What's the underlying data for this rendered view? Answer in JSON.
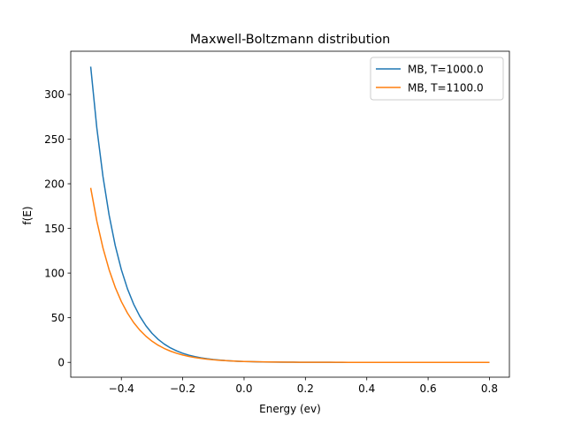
{
  "chart_data": {
    "type": "line",
    "title": "Maxwell-Boltzmann distribution",
    "xlabel": "Energy (ev)",
    "ylabel": "f(E)",
    "xlim": [
      -0.565,
      0.865
    ],
    "ylim": [
      -16.6,
      348.4
    ],
    "xticks": [
      -0.4,
      -0.2,
      0.0,
      0.2,
      0.4,
      0.6,
      0.8
    ],
    "xtick_labels": [
      "−0.4",
      "−0.2",
      "0.0",
      "0.2",
      "0.4",
      "0.6",
      "0.8"
    ],
    "yticks": [
      0,
      50,
      100,
      150,
      200,
      250,
      300
    ],
    "ytick_labels": [
      "0",
      "50",
      "100",
      "150",
      "200",
      "250",
      "300"
    ],
    "grid": false,
    "legend_position": "top-right",
    "series": [
      {
        "name": "MB, T=1000.0",
        "color": "#1f77b4",
        "curve": {
          "amplitude": 1.0,
          "temperature_K": 1000.0,
          "exponent_scale": 5.8
        }
      },
      {
        "name": "MB, T=1100.0",
        "color": "#ff7f0e",
        "curve": {
          "amplitude": 1.0,
          "temperature_K": 1100.0,
          "exponent_scale": 5.8
        }
      }
    ],
    "x_start": -0.5,
    "x_end": 0.8,
    "samples": 66
  }
}
